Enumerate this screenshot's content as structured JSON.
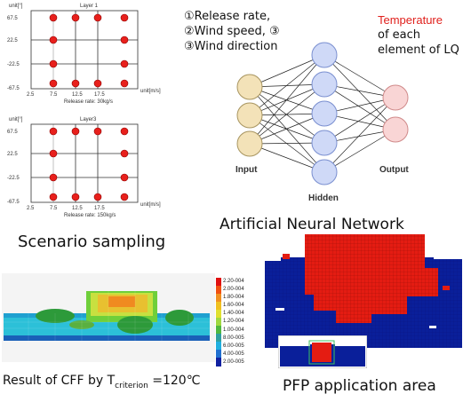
{
  "scenario": {
    "caption": "Scenario sampling",
    "plots": [
      {
        "title": "Layer 1",
        "yunit": "unit[°]",
        "xunit": "unit[m/s]",
        "xticks": [
          "2.5",
          "7.5",
          "12.5",
          "17.5"
        ],
        "yticks": [
          "67.5",
          "22.5",
          "-22.5",
          "-67.5"
        ],
        "subcaption": "Release rate: 30kg/s"
      },
      {
        "title": "Layer3",
        "yunit": "unit[°]",
        "xunit": "unit[m/s]",
        "xticks": [
          "2.5",
          "7.5",
          "12.5",
          "17.5"
        ],
        "yticks": [
          "67.5",
          "22.5",
          "-22.5",
          "-67.5"
        ],
        "subcaption": "Release rate: 150kg/s"
      }
    ]
  },
  "ann": {
    "inputs": [
      "①Release rate,",
      "②Wind speed, ③",
      "③Wind direction"
    ],
    "temp_word": "Temperature",
    "temp_rest": [
      "of each",
      "element of LQ"
    ],
    "label_input": "Input",
    "label_hidden": "Hidden",
    "label_output": "Output",
    "caption": "Artificial Neural Network"
  },
  "cff": {
    "caption_pre": "Result of CFF by T",
    "caption_sub": "criterion",
    "caption_post": " =120℃",
    "colorbar_labels": [
      "2.20-004",
      "2.00-004",
      "1.80-004",
      "1.60-004",
      "1.40-004",
      "1.20-004",
      "1.00-004",
      "8.00-005",
      "6.00-005",
      "4.00-005",
      "2.00-005"
    ]
  },
  "pfp": {
    "caption": "PFP application area"
  },
  "colors": {
    "input_node": "#f3e2b8",
    "hidden_node": "#cfd9f7",
    "output_node": "#f9d5d5",
    "sample_point": "#e8201c",
    "temperature": "#e0201c",
    "pfp_blue": "#0a1f9a",
    "pfp_red": "#e41c12"
  }
}
